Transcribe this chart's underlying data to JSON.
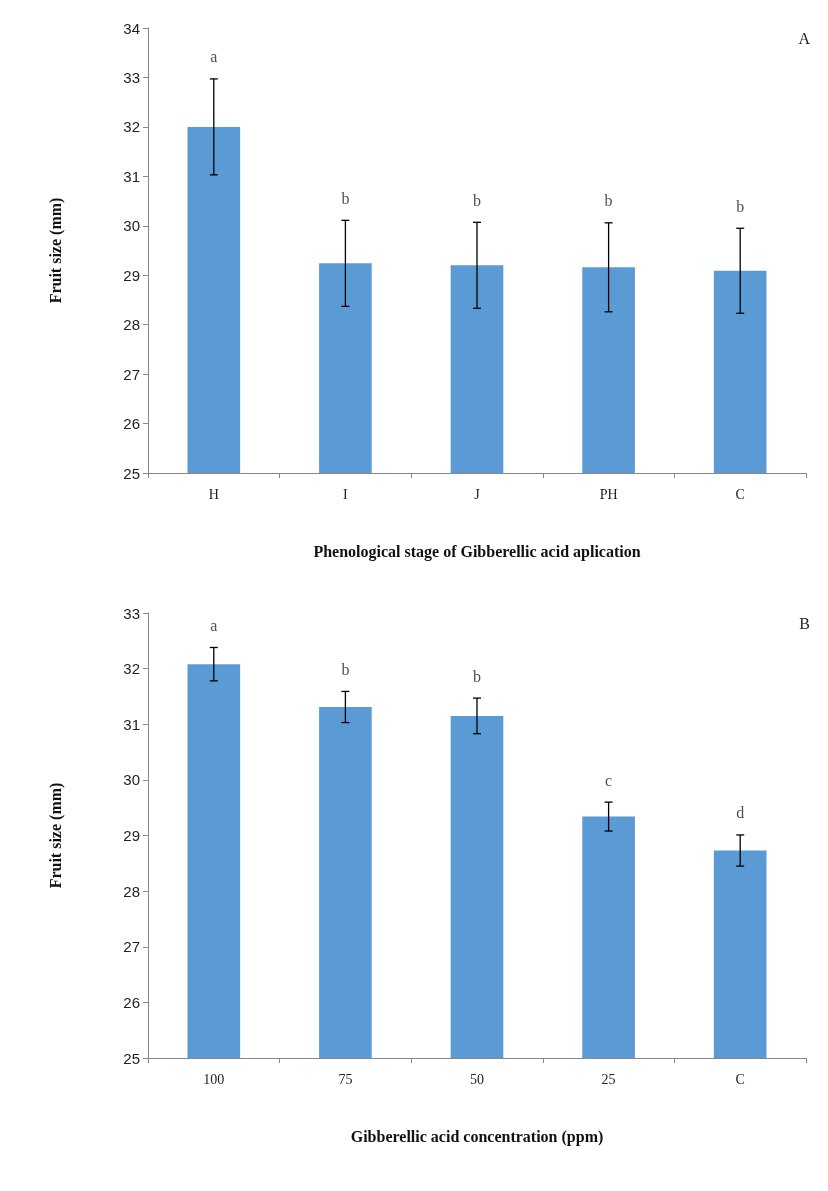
{
  "chart_data": [
    {
      "type": "bar",
      "categories": [
        "H",
        "I",
        "J",
        "PH",
        "C"
      ],
      "values": [
        32.0,
        29.24,
        29.2,
        29.16,
        29.09
      ],
      "errors": [
        0.97,
        0.87,
        0.87,
        0.9,
        0.86
      ],
      "color": "#5b9bd5",
      "xlabel": "Phenological stage of Gibberellic acid aplication",
      "ylabel": "Fruit size (mm)",
      "ylim": [
        25,
        34
      ],
      "yticks": [
        25,
        26,
        27,
        28,
        29,
        30,
        31,
        32,
        33,
        34
      ],
      "grid": false,
      "annotations": [
        "A",
        {
          "text": "a",
          "x": "H",
          "y": 32.97
        },
        {
          "text": "b",
          "x": "I",
          "y": 30.11
        },
        {
          "text": "b",
          "x": "J",
          "y": 30.07
        },
        {
          "text": "b",
          "x": "PH",
          "y": 30.06
        },
        {
          "text": "b",
          "x": "C",
          "y": 29.95
        }
      ]
    },
    {
      "type": "bar",
      "categories": [
        "100",
        "75",
        "50",
        "25",
        "C"
      ],
      "values": [
        32.08,
        31.31,
        31.15,
        29.34,
        28.73
      ],
      "errors": [
        0.3,
        0.28,
        0.32,
        0.26,
        0.28
      ],
      "color": "#5b9bd5",
      "xlabel": "Gibberellic acid concentration (ppm)",
      "ylabel": "Fruit size (mm)",
      "ylim": [
        25,
        33
      ],
      "yticks": [
        25,
        26,
        27,
        28,
        29,
        30,
        31,
        32,
        33
      ],
      "grid": false,
      "annotations": [
        "B",
        {
          "text": "a",
          "x": "100",
          "y": 32.38
        },
        {
          "text": "b",
          "x": "75",
          "y": 31.59
        },
        {
          "text": "b",
          "x": "50",
          "y": 31.47
        },
        {
          "text": "c",
          "x": "25",
          "y": 29.6
        },
        {
          "text": "d",
          "x": "C",
          "y": 29.01
        }
      ]
    }
  ]
}
